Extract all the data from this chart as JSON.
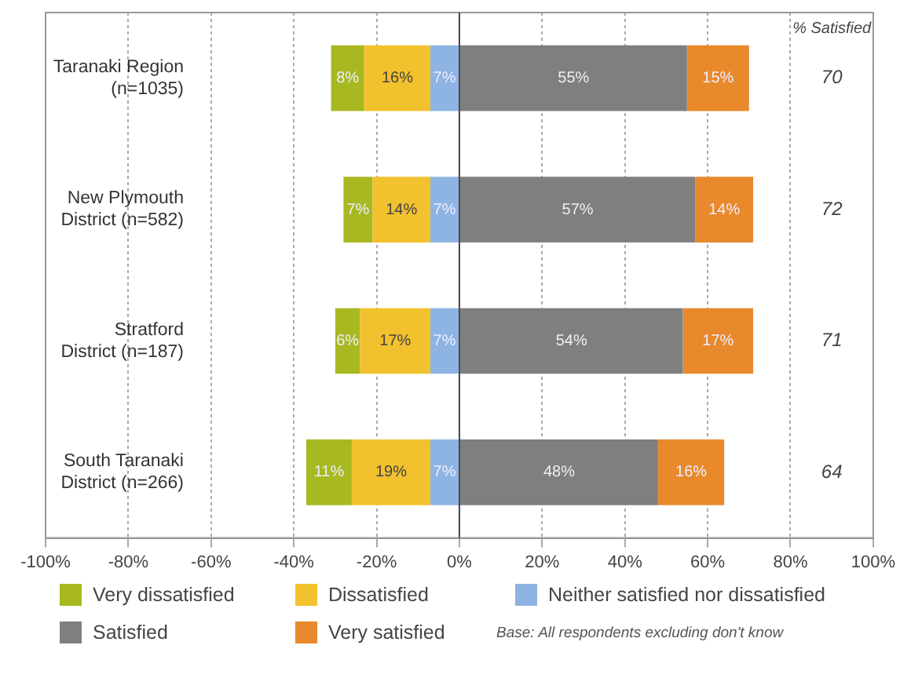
{
  "chart_data": {
    "type": "bar",
    "orientation": "horizontal",
    "categories": [
      "Taranaki Region\n(n=1035)",
      "New Plymouth\nDistrict (n=582)",
      "Stratford\nDistrict (n=187)",
      "South Taranaki\nDistrict (n=266)"
    ],
    "series": [
      {
        "name": "Neither satisfied nor dissatisfied",
        "color": "#8db4e2",
        "values": [
          7,
          7,
          7,
          7
        ],
        "base": [
          -7,
          -7,
          -7,
          -7
        ],
        "value_labels": [
          "7%",
          "7%",
          "7%",
          "7%"
        ]
      },
      {
        "name": "Dissatisfied",
        "color": "#f2c12e",
        "values": [
          16,
          14,
          17,
          19
        ],
        "base": [
          -23,
          -21,
          -24,
          -26
        ],
        "value_labels": [
          "16%",
          "14%",
          "17%",
          "19%"
        ]
      },
      {
        "name": "Very dissatisfied",
        "color": "#a8b820",
        "values": [
          8,
          7,
          6,
          11
        ],
        "base": [
          -31,
          -28,
          -30,
          -37
        ],
        "value_labels": [
          "8%",
          "7%",
          "6%",
          "11%"
        ]
      },
      {
        "name": "Satisfied",
        "color": "#7f7f7f",
        "values": [
          55,
          57,
          54,
          48
        ],
        "base": [
          0,
          0,
          0,
          0
        ],
        "value_labels": [
          "55%",
          "57%",
          "54%",
          "48%"
        ]
      },
      {
        "name": "Very satisfied",
        "color": "#e8892b",
        "values": [
          15,
          14,
          17,
          16
        ],
        "base": [
          55,
          57,
          54,
          48
        ],
        "value_labels": [
          "15%",
          "14%",
          "17%",
          "16%"
        ]
      }
    ],
    "xlim": [
      -100,
      100
    ],
    "xticks": [
      {
        "value": -100,
        "label": "-100%"
      },
      {
        "value": -80,
        "label": "-80%"
      },
      {
        "value": -60,
        "label": "-60%"
      },
      {
        "value": -40,
        "label": "-40%"
      },
      {
        "value": -20,
        "label": "-20%"
      },
      {
        "value": 0,
        "label": "0%"
      },
      {
        "value": 20,
        "label": "20%"
      },
      {
        "value": 40,
        "label": "40%"
      },
      {
        "value": 60,
        "label": "60%"
      },
      {
        "value": 80,
        "label": "80%"
      },
      {
        "value": 100,
        "label": "100%"
      }
    ],
    "grid": "x",
    "legend": "bottom",
    "annotations": [
      "% Satisfied",
      "70",
      "72",
      "71",
      "64",
      "Base: All respondents excluding don't know"
    ]
  }
}
